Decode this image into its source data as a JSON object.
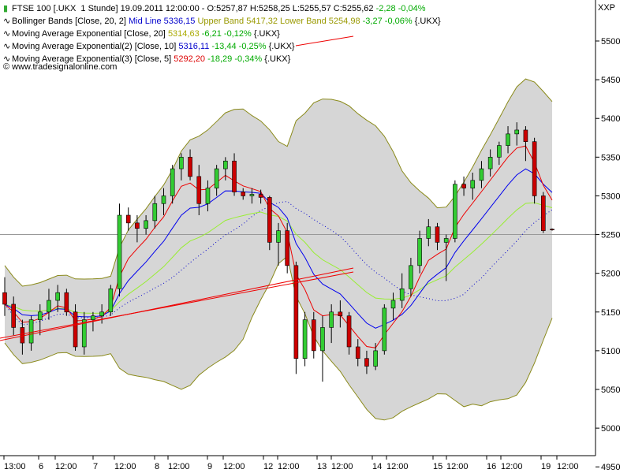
{
  "header": {
    "symbol_line": {
      "name": "FTSE 100 [.UKX  1 Stunde]",
      "datetime": "19.09.2011 12:00:00",
      "open": "O:5257,87",
      "high": "H:5258,25",
      "low": "L:5255,57",
      "close": "C:5255,62",
      "change": "-2,28",
      "change_pct": "-0,04%"
    },
    "bollinger": {
      "name": "Bollinger Bands [Close, 20, 2]",
      "mid": "Mid Line 5336,15",
      "upper": "Upper Band 5417,32",
      "lower": "Lower Band 5254,98",
      "change": "-3,27",
      "change_pct": "-0,06%",
      "suffix": "{.UKX}"
    },
    "ema1": {
      "name": "Moving Average Exponential [Close, 20]",
      "value": "5314,63",
      "change": "-6,21",
      "change_pct": "-0,12%",
      "suffix": "{.UKX}"
    },
    "ema2": {
      "name": "Moving Average Exponential(2) [Close, 10]",
      "value": "5316,11",
      "change": "-13,44",
      "change_pct": "-0,25%",
      "suffix": "{.UKX}"
    },
    "ema3": {
      "name": "Moving Average Exponential(3) [Close, 5]",
      "value": "5292,20",
      "change": "-18,29",
      "change_pct": "-0,34%",
      "suffix": "{.UKX}"
    },
    "copyright": "© www.tradesignalonline.com",
    "corner_label": "XXP"
  },
  "colors": {
    "up": "#33cc33",
    "down": "#cc0000",
    "band_fill": "#d6d6d6",
    "band_line": "#8a8a1a",
    "mid_line": "#0000cc",
    "ema20": "#99ee33",
    "ema10": "#0000ee",
    "ema5": "#ee0000",
    "trend": "#ee0000",
    "green_text": "#00aa00",
    "red_text": "#dd0000",
    "olive_text": "#999900",
    "blue_text": "#0000cc",
    "yellow_text": "#aaaa00"
  },
  "chart_data": {
    "type": "candlestick",
    "ylim": [
      4900,
      5500
    ],
    "y_ticks": [
      "5500",
      "5450",
      "5400",
      "5350",
      "5300",
      "5250",
      "5200",
      "5150",
      "5100",
      "5050",
      "5000",
      "4950"
    ],
    "x_labels": [
      "13:00",
      "6",
      "12:00",
      "7",
      "12:00",
      "8",
      "12:00",
      "9",
      "12:00",
      "12",
      "12:00",
      "13",
      "12:00",
      "14",
      "12:00",
      "15",
      "12:00",
      "16",
      "12:00",
      "19",
      "12:00"
    ],
    "candles": [
      [
        5175,
        5195,
        5145,
        5160
      ],
      [
        5160,
        5170,
        5120,
        5130
      ],
      [
        5130,
        5140,
        5095,
        5110
      ],
      [
        5110,
        5145,
        5100,
        5140
      ],
      [
        5140,
        5160,
        5120,
        5150
      ],
      [
        5150,
        5180,
        5140,
        5165
      ],
      [
        5165,
        5185,
        5150,
        5175
      ],
      [
        5175,
        5180,
        5145,
        5150
      ],
      [
        5150,
        5160,
        5100,
        5105
      ],
      [
        5105,
        5150,
        5095,
        5140
      ],
      [
        5140,
        5150,
        5125,
        5145
      ],
      [
        5145,
        5160,
        5135,
        5150
      ],
      [
        5150,
        5185,
        5145,
        5180
      ],
      [
        5180,
        5290,
        5170,
        5275
      ],
      [
        5275,
        5285,
        5255,
        5265
      ],
      [
        5265,
        5275,
        5240,
        5258
      ],
      [
        5258,
        5275,
        5250,
        5268
      ],
      [
        5268,
        5300,
        5258,
        5290
      ],
      [
        5290,
        5310,
        5275,
        5300
      ],
      [
        5300,
        5340,
        5290,
        5335
      ],
      [
        5335,
        5355,
        5320,
        5350
      ],
      [
        5350,
        5360,
        5320,
        5325
      ],
      [
        5325,
        5340,
        5275,
        5290
      ],
      [
        5290,
        5320,
        5280,
        5310
      ],
      [
        5310,
        5340,
        5300,
        5335
      ],
      [
        5335,
        5350,
        5320,
        5345
      ],
      [
        5345,
        5355,
        5300,
        5305
      ],
      [
        5305,
        5310,
        5295,
        5300
      ],
      [
        5300,
        5310,
        5290,
        5302
      ],
      [
        5302,
        5308,
        5290,
        5298
      ],
      [
        5298,
        5300,
        5230,
        5240
      ],
      [
        5240,
        5265,
        5210,
        5255
      ],
      [
        5255,
        5265,
        5200,
        5210
      ],
      [
        5210,
        5215,
        5070,
        5090
      ],
      [
        5090,
        5150,
        5080,
        5140
      ],
      [
        5140,
        5150,
        5090,
        5100
      ],
      [
        5100,
        5145,
        5060,
        5130
      ],
      [
        5130,
        5160,
        5110,
        5150
      ],
      [
        5150,
        5165,
        5130,
        5145
      ],
      [
        5145,
        5150,
        5095,
        5105
      ],
      [
        5105,
        5115,
        5080,
        5090
      ],
      [
        5090,
        5100,
        5070,
        5080
      ],
      [
        5080,
        5110,
        5075,
        5100
      ],
      [
        5100,
        5160,
        5095,
        5155
      ],
      [
        5155,
        5175,
        5140,
        5165
      ],
      [
        5165,
        5200,
        5155,
        5180
      ],
      [
        5180,
        5220,
        5170,
        5210
      ],
      [
        5210,
        5255,
        5200,
        5245
      ],
      [
        5245,
        5270,
        5235,
        5260
      ],
      [
        5260,
        5265,
        5230,
        5240
      ],
      [
        5240,
        5250,
        5190,
        5245
      ],
      [
        5245,
        5320,
        5240,
        5315
      ],
      [
        5315,
        5325,
        5300,
        5310
      ],
      [
        5310,
        5330,
        5295,
        5320
      ],
      [
        5320,
        5345,
        5310,
        5335
      ],
      [
        5335,
        5360,
        5325,
        5350
      ],
      [
        5350,
        5370,
        5340,
        5365
      ],
      [
        5365,
        5390,
        5355,
        5380
      ],
      [
        5380,
        5395,
        5365,
        5385
      ],
      [
        5385,
        5390,
        5345,
        5370
      ],
      [
        5370,
        5375,
        5290,
        5300
      ],
      [
        5300,
        5305,
        5252,
        5255
      ],
      [
        5257,
        5258,
        5255,
        5256
      ]
    ]
  }
}
